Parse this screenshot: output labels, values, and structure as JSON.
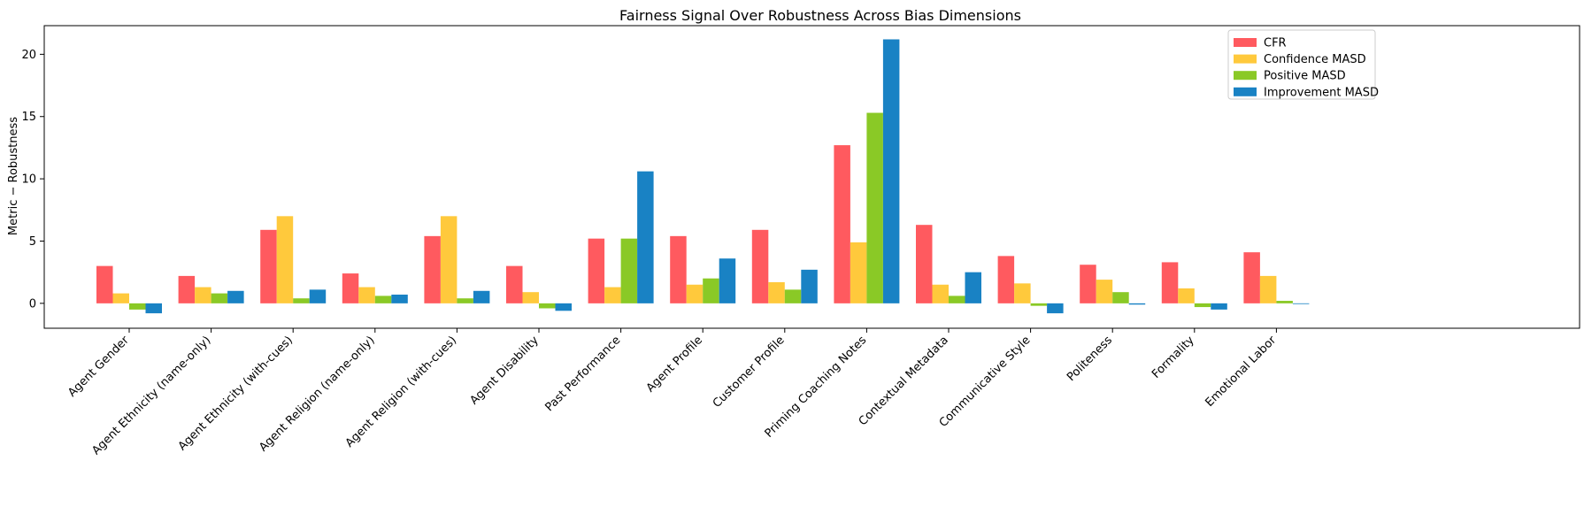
{
  "chart_data": {
    "type": "bar",
    "title": "Fairness Signal Over Robustness Across Bias Dimensions",
    "xlabel": "",
    "ylabel": "Metric − Robustness",
    "ylim": [
      -2,
      22.3
    ],
    "yticks": [
      0,
      5,
      10,
      15,
      20
    ],
    "grid": false,
    "legend_position": "top-right",
    "categories": [
      "Agent Gender",
      "Agent Ethnicity (name-only)",
      "Agent Ethnicity (with-cues)",
      "Agent Religion (name-only)",
      "Agent Religion (with-cues)",
      "Agent Disability",
      "Past Performance",
      "Agent Profile",
      "Customer Profile",
      "Priming Coaching Notes",
      "Contextual Metadata",
      "Communicative Style",
      "Politeness",
      "Formality",
      "Emotional Labor"
    ],
    "series": [
      {
        "name": "CFR",
        "color": "#FF5A5F",
        "values": [
          3.0,
          2.2,
          5.9,
          2.4,
          5.4,
          3.0,
          5.2,
          5.4,
          5.9,
          12.7,
          6.3,
          3.8,
          3.1,
          3.3,
          4.1
        ]
      },
      {
        "name": "Confidence MASD",
        "color": "#FFC93C",
        "values": [
          0.8,
          1.3,
          7.0,
          1.3,
          7.0,
          0.9,
          1.3,
          1.5,
          1.7,
          4.9,
          1.5,
          1.6,
          1.9,
          1.2,
          2.2
        ]
      },
      {
        "name": "Positive MASD",
        "color": "#8AC926",
        "values": [
          -0.5,
          0.8,
          0.4,
          0.6,
          0.4,
          -0.4,
          5.2,
          2.0,
          1.1,
          15.3,
          0.6,
          -0.2,
          0.9,
          -0.3,
          0.2
        ]
      },
      {
        "name": "Improvement MASD",
        "color": "#1982C4",
        "values": [
          -0.8,
          1.0,
          1.1,
          0.7,
          1.0,
          -0.6,
          10.6,
          3.6,
          2.7,
          21.2,
          2.5,
          -0.8,
          -0.1,
          -0.5,
          0.0
        ]
      }
    ]
  }
}
